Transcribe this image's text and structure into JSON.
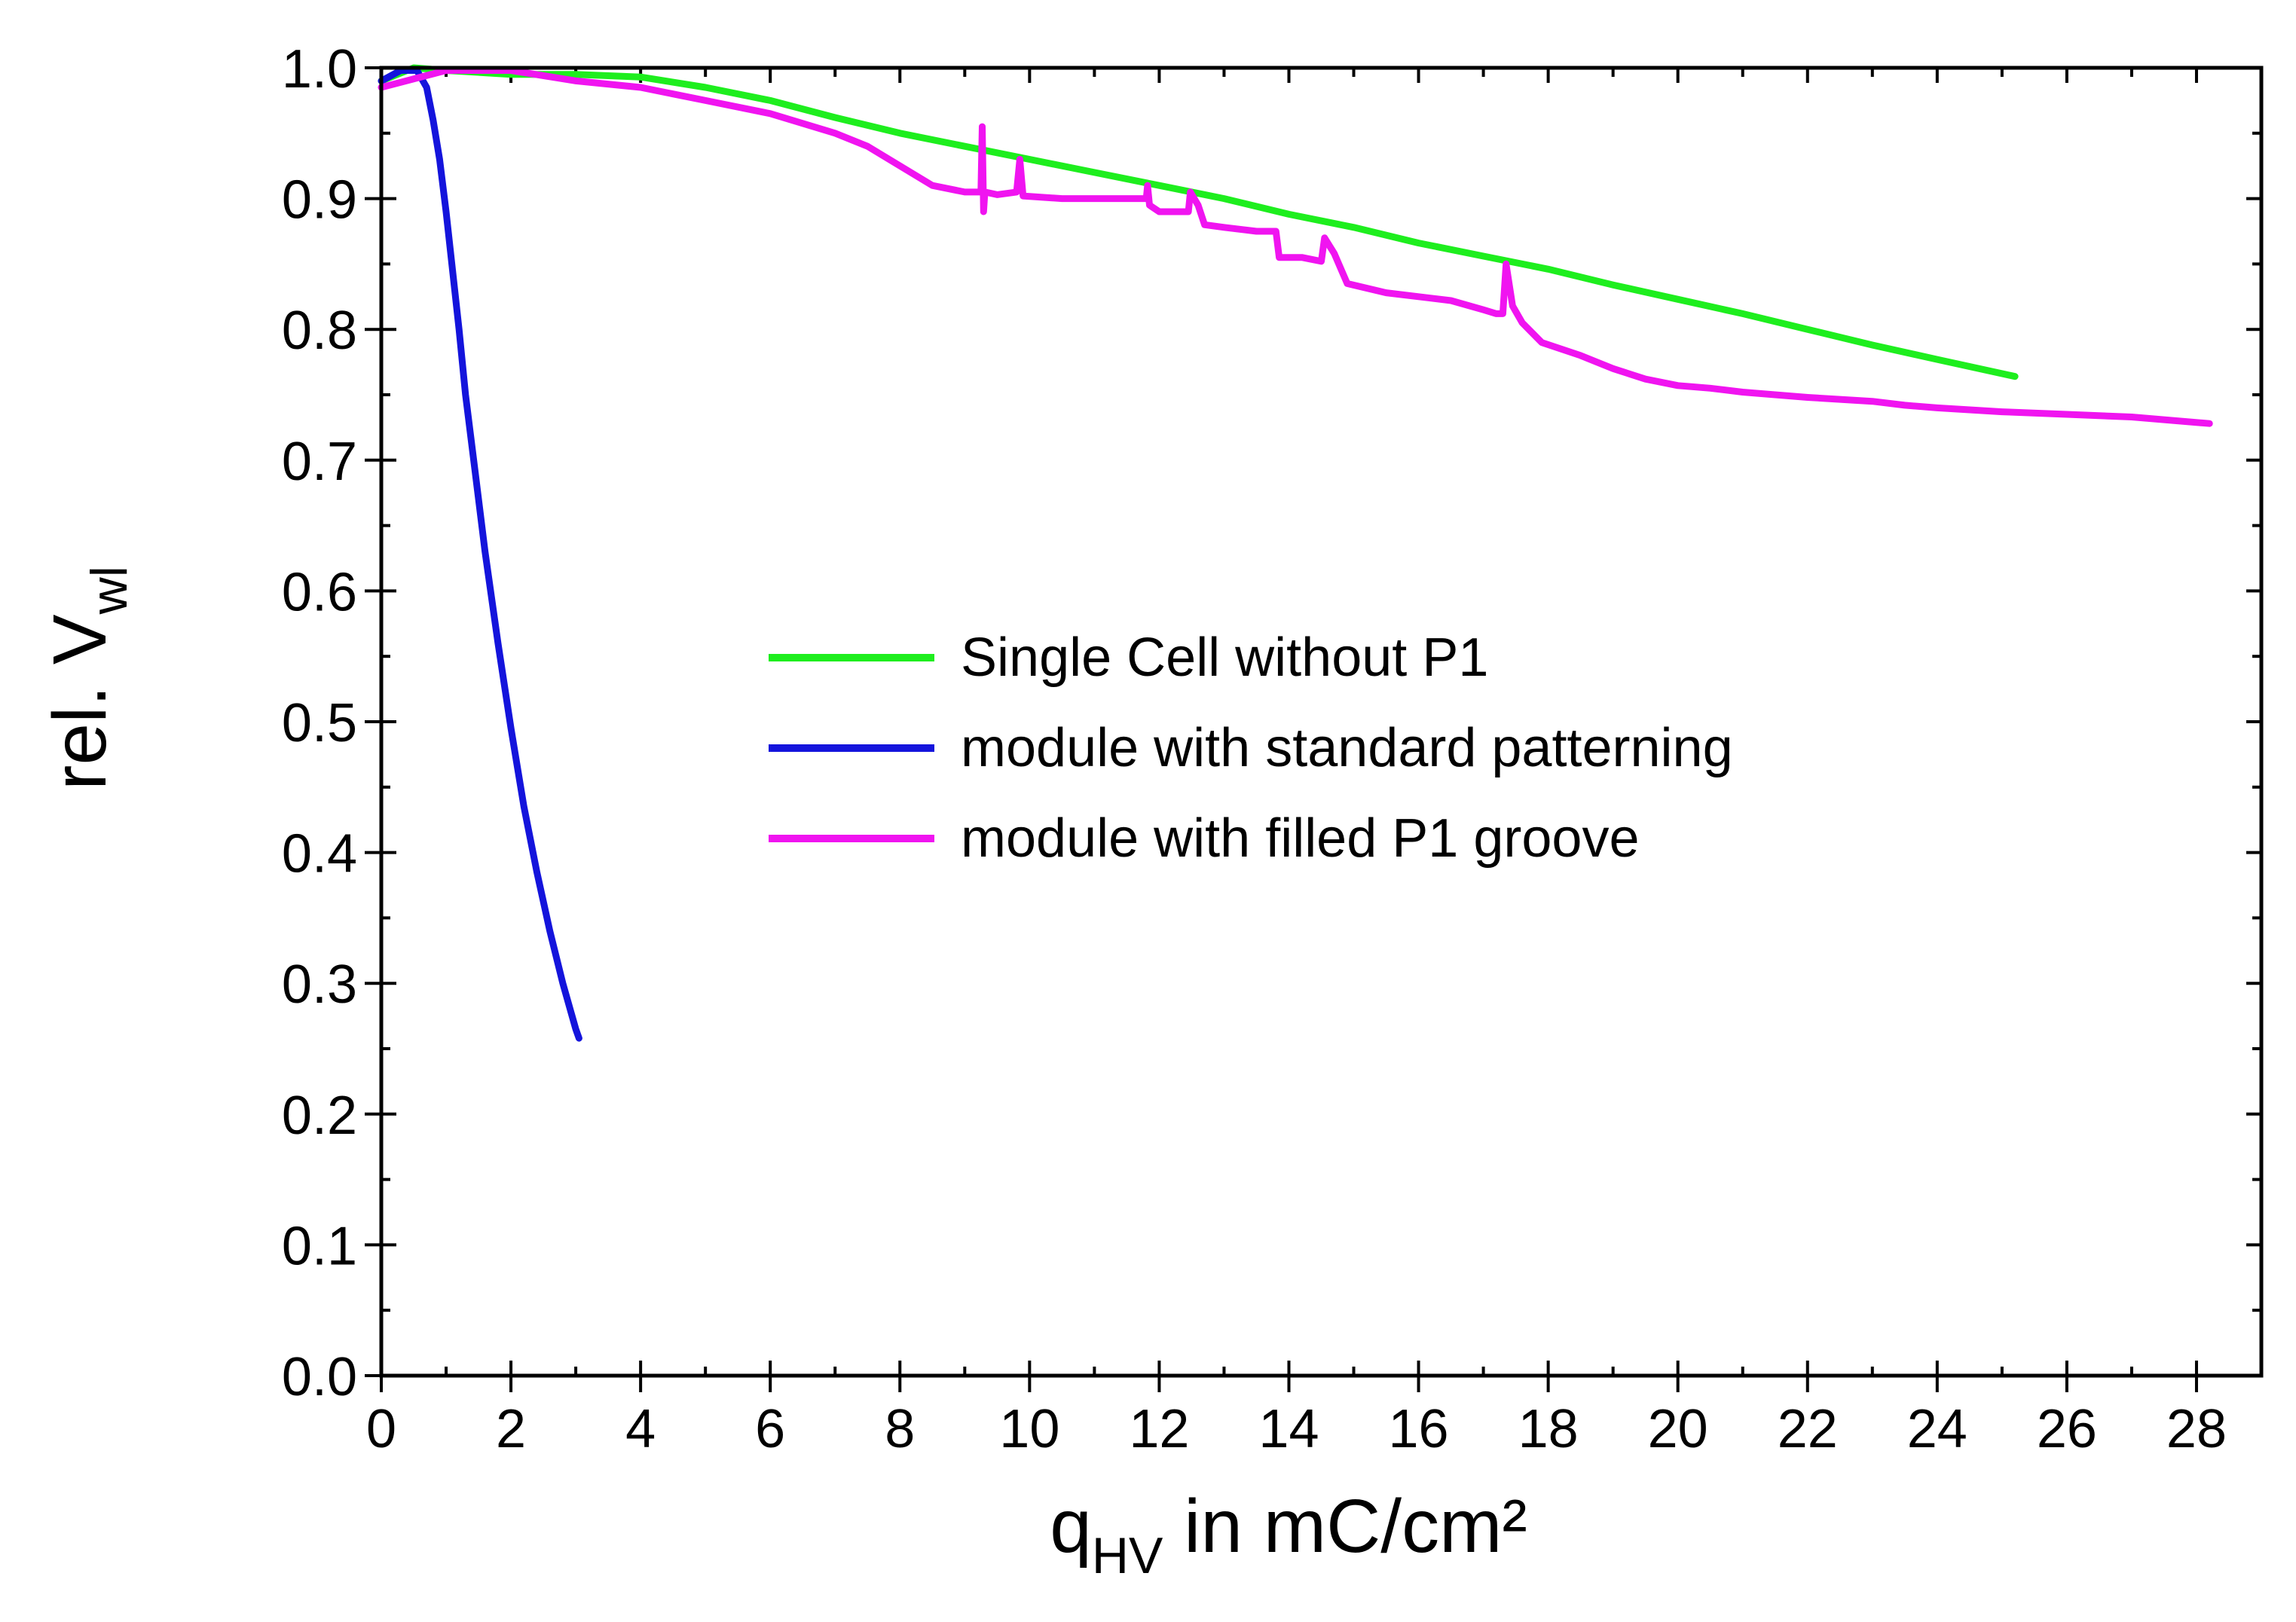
{
  "chart_data": {
    "type": "line",
    "xlabel": {
      "main": "q",
      "sub": "HV",
      "rest": " in mC/cm²"
    },
    "ylabel": {
      "main": "rel. V",
      "sub": "wl"
    },
    "xlim": [
      0,
      29
    ],
    "ylim": [
      0.0,
      1.0
    ],
    "xticks": [
      0,
      2,
      4,
      6,
      8,
      10,
      12,
      14,
      16,
      18,
      20,
      22,
      24,
      26,
      28
    ],
    "xtick_labels": [
      "0",
      "2",
      "4",
      "6",
      "8",
      "10",
      "12",
      "14",
      "16",
      "18",
      "20",
      "22",
      "24",
      "26",
      "28"
    ],
    "yticks": [
      0.0,
      0.1,
      0.2,
      0.3,
      0.4,
      0.5,
      0.6,
      0.7,
      0.8,
      0.9,
      1.0
    ],
    "ytick_labels": [
      "0.0",
      "0.1",
      "0.2",
      "0.3",
      "0.4",
      "0.5",
      "0.6",
      "0.7",
      "0.8",
      "0.9",
      "1.0"
    ],
    "legend_position": "center-right",
    "series": [
      {
        "name": "Single Cell without P1",
        "color": "#1eee1e",
        "x": [
          0,
          0.5,
          1,
          2,
          3,
          4,
          5,
          6,
          7,
          8,
          9,
          10,
          11,
          12,
          13,
          14,
          15,
          16,
          17,
          18,
          19,
          20,
          21,
          22,
          23,
          24,
          25.2
        ],
        "y": [
          0.99,
          1.0,
          0.998,
          0.995,
          0.995,
          0.993,
          0.985,
          0.975,
          0.962,
          0.95,
          0.94,
          0.93,
          0.92,
          0.91,
          0.9,
          0.888,
          0.878,
          0.866,
          0.856,
          0.846,
          0.834,
          0.823,
          0.812,
          0.8,
          0.788,
          0.777,
          0.764
        ]
      },
      {
        "name": "module with standard patterning",
        "color": "#1414dc",
        "x": [
          0,
          0.3,
          0.55,
          0.7,
          0.8,
          0.9,
          1.0,
          1.1,
          1.2,
          1.3,
          1.45,
          1.6,
          1.8,
          2.0,
          2.2,
          2.4,
          2.6,
          2.8,
          3.0,
          3.05
        ],
        "y": [
          0.99,
          0.998,
          0.998,
          0.985,
          0.96,
          0.93,
          0.89,
          0.845,
          0.8,
          0.75,
          0.69,
          0.63,
          0.56,
          0.495,
          0.435,
          0.385,
          0.34,
          0.3,
          0.265,
          0.258
        ]
      },
      {
        "name": "module with filled P1 groove",
        "color": "#f014f0",
        "x": [
          0,
          1,
          2,
          3,
          4,
          5,
          6,
          7,
          7.5,
          8,
          8.5,
          9.0,
          9.25,
          9.27,
          9.29,
          9.31,
          9.5,
          9.8,
          9.85,
          9.9,
          10.5,
          11.0,
          11.5,
          11.8,
          11.82,
          11.85,
          12.0,
          12.45,
          12.48,
          12.6,
          12.7,
          13.0,
          13.5,
          13.8,
          13.85,
          14.2,
          14.5,
          14.55,
          14.7,
          14.9,
          15.5,
          16.0,
          16.5,
          17.0,
          17.2,
          17.3,
          17.35,
          17.45,
          17.6,
          17.9,
          18.5,
          19.0,
          19.5,
          20.0,
          20.5,
          21.0,
          21.5,
          22.0,
          23.0,
          23.5,
          24.0,
          25.0,
          26.0,
          27.0,
          28.2
        ],
        "y": [
          0.985,
          0.998,
          0.998,
          0.99,
          0.985,
          0.975,
          0.965,
          0.95,
          0.94,
          0.925,
          0.91,
          0.905,
          0.905,
          0.955,
          0.89,
          0.905,
          0.903,
          0.905,
          0.93,
          0.902,
          0.9,
          0.9,
          0.9,
          0.9,
          0.91,
          0.895,
          0.89,
          0.89,
          0.905,
          0.895,
          0.88,
          0.878,
          0.875,
          0.875,
          0.855,
          0.855,
          0.852,
          0.87,
          0.858,
          0.835,
          0.828,
          0.825,
          0.822,
          0.815,
          0.812,
          0.812,
          0.85,
          0.818,
          0.805,
          0.79,
          0.78,
          0.77,
          0.762,
          0.757,
          0.755,
          0.752,
          0.75,
          0.748,
          0.745,
          0.742,
          0.74,
          0.737,
          0.735,
          0.733,
          0.728
        ]
      }
    ]
  }
}
